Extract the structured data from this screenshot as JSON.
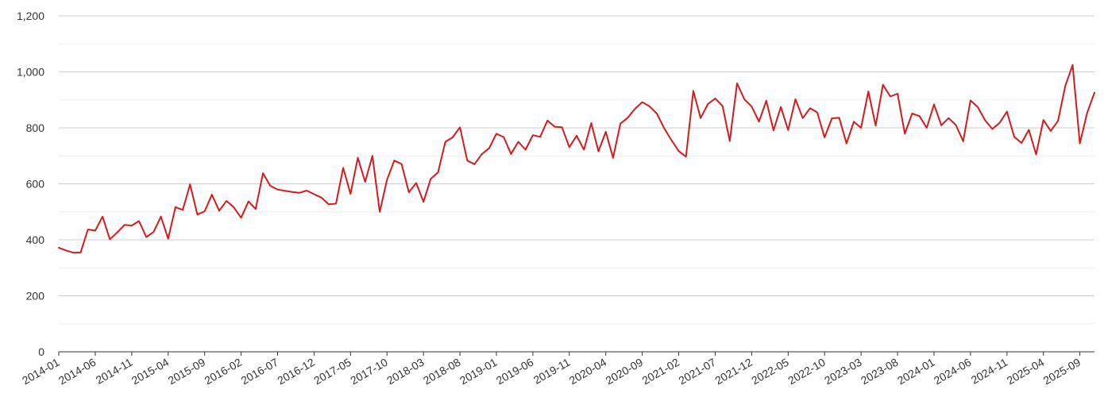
{
  "chart_data": {
    "type": "line",
    "title": "",
    "xlabel": "",
    "ylabel": "",
    "ylim": [
      0,
      1200
    ],
    "y_ticks": [
      {
        "value": 0,
        "label": "0"
      },
      {
        "value": 200,
        "label": "200"
      },
      {
        "value": 400,
        "label": "400"
      },
      {
        "value": 600,
        "label": "600"
      },
      {
        "value": 800,
        "label": "800"
      },
      {
        "value": 1000,
        "label": "1,000"
      },
      {
        "value": 1200,
        "label": "1,200"
      }
    ],
    "minor_gridlines": [
      100,
      300,
      500,
      700,
      900,
      1100
    ],
    "x_range": [
      "2014-01",
      "2025-11"
    ],
    "x_tick_labels": [
      "2014-01",
      "2014-06",
      "2014-11",
      "2015-04",
      "2015-09",
      "2016-02",
      "2016-07",
      "2016-12",
      "2017-05",
      "2017-10",
      "2018-03",
      "2018-08",
      "2019-01",
      "2019-06",
      "2019-11",
      "2020-04",
      "2020-09",
      "2021-02",
      "2021-07",
      "2021-12",
      "2022-05",
      "2022-10",
      "2023-03",
      "2023-08",
      "2024-01",
      "2024-06",
      "2024-11",
      "2025-04",
      "2025-09"
    ],
    "grid": true,
    "legend": "none",
    "series": [
      {
        "color": "#d7191c",
        "start": "2014-01",
        "values": [
          372,
          362,
          354,
          355,
          437,
          433,
          483,
          402,
          426,
          453,
          451,
          467,
          410,
          428,
          483,
          404,
          517,
          507,
          598,
          490,
          502,
          561,
          504,
          539,
          516,
          479,
          537,
          510,
          638,
          593,
          580,
          575,
          571,
          568,
          576,
          563,
          551,
          527,
          529,
          657,
          564,
          693,
          607,
          700,
          500,
          614,
          683,
          671,
          570,
          603,
          536,
          618,
          641,
          750,
          766,
          802,
          683,
          670,
          706,
          727,
          779,
          767,
          707,
          750,
          722,
          774,
          768,
          826,
          804,
          802,
          731,
          772,
          722,
          817,
          716,
          786,
          693,
          815,
          836,
          868,
          892,
          877,
          851,
          799,
          756,
          717,
          697,
          932,
          835,
          885,
          905,
          878,
          753,
          959,
          902,
          876,
          822,
          897,
          791,
          875,
          792,
          902,
          835,
          870,
          855,
          766,
          834,
          836,
          744,
          822,
          800,
          930,
          808,
          954,
          912,
          922,
          779,
          851,
          842,
          800,
          884,
          809,
          835,
          810,
          752,
          898,
          874,
          827,
          796,
          818,
          858,
          768,
          746,
          793,
          705,
          828,
          789,
          825,
          950,
          1025,
          744,
          854,
          926
        ]
      }
    ]
  }
}
